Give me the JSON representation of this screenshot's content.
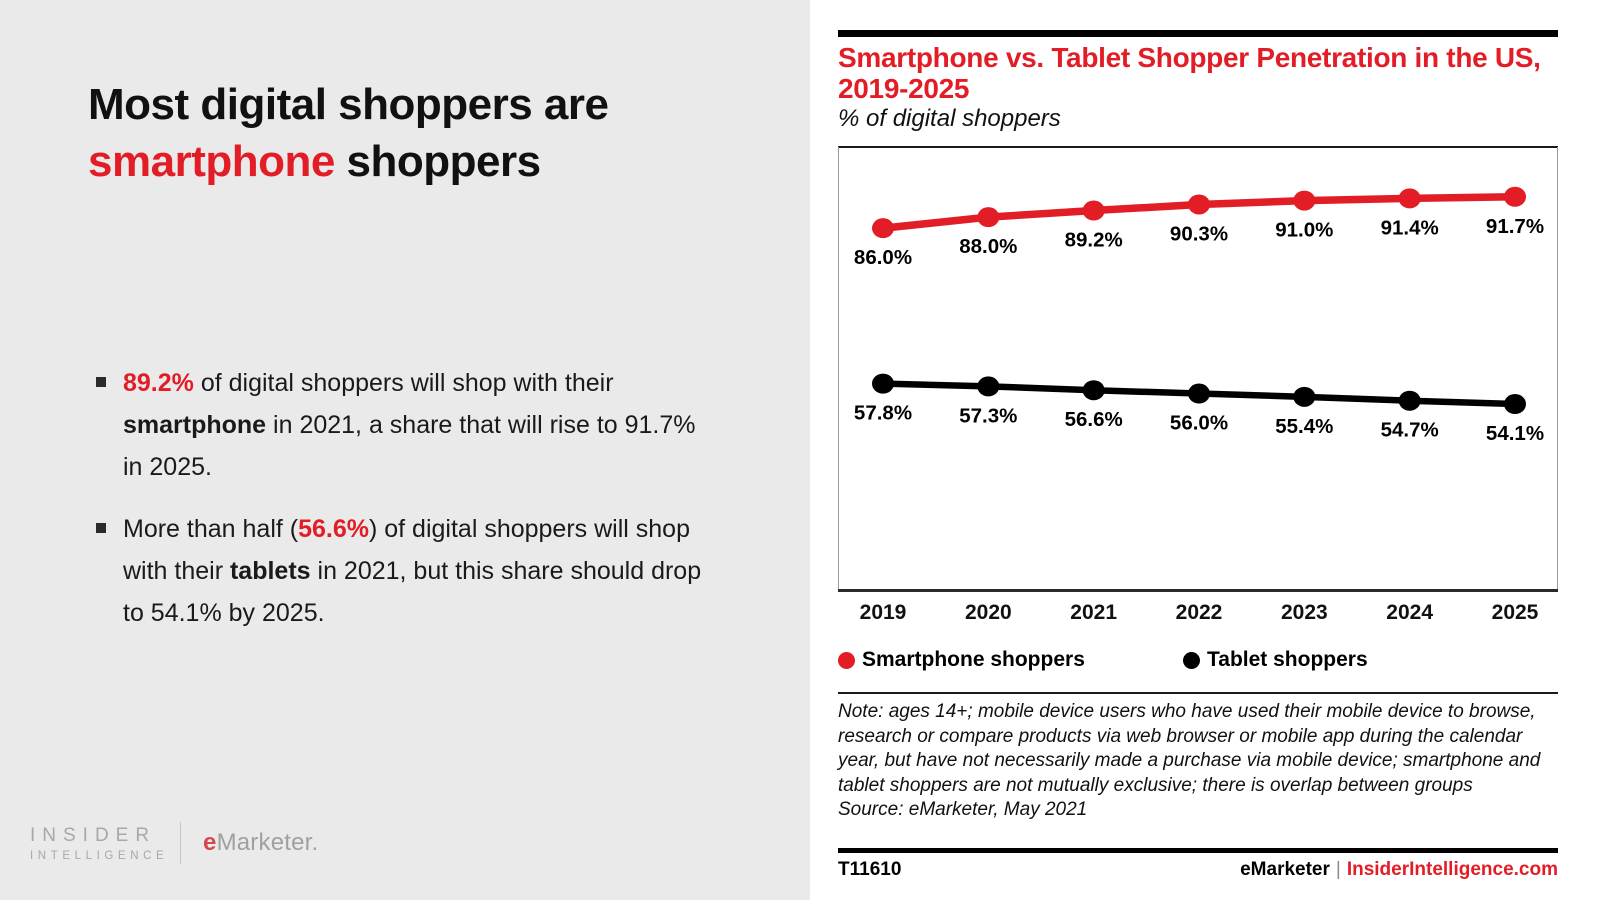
{
  "colors": {
    "red": "#e21d26",
    "black": "#000000",
    "panel_bg": "#eaeaea",
    "logo_gray": "#a9a7a7"
  },
  "left_panel": {
    "title_segments": [
      {
        "t": "Most digital shoppers are ",
        "s": ""
      },
      {
        "t": "smartphone",
        "s": "seg-red"
      },
      {
        "t": " shoppers",
        "s": ""
      }
    ],
    "bullets": [
      {
        "segments": [
          {
            "t": "89.2%",
            "s": "seg-red"
          },
          {
            "t": " of digital shoppers will shop with their ",
            "s": ""
          },
          {
            "t": "smartphone",
            "s": "seg-bold"
          },
          {
            "t": " in 2021, a share that will rise to 91.7% in 2025.",
            "s": ""
          }
        ]
      },
      {
        "segments": [
          {
            "t": "More than half (",
            "s": ""
          },
          {
            "t": "56.6%",
            "s": "seg-red"
          },
          {
            "t": ") of digital shoppers will shop with their ",
            "s": ""
          },
          {
            "t": "tablets",
            "s": "seg-bold"
          },
          {
            "t": " in 2021, but this share should drop to 54.1% by 2025.",
            "s": ""
          }
        ]
      }
    ],
    "logo": {
      "insider": "INSIDER",
      "intelligence": "INTELLIGENCE",
      "brand_e": "e",
      "brand_rest": "Marketer."
    }
  },
  "chart_panel": {
    "title": "Smartphone vs. Tablet Shopper Penetration in the US, 2019-2025",
    "subtitle": "% of digital shoppers",
    "note": "Note: ages 14+; mobile device users who have used their mobile device to browse, research or compare products via web browser or mobile app during the calendar year, but have not necessarily made a purchase via mobile device; smartphone and tablet shoppers are not mutually exclusive; there is overlap between groups",
    "source": "Source: eMarketer, May 2021",
    "footer": {
      "code": "T11610",
      "brand": "eMarketer",
      "pipe": "|",
      "site": "InsiderIntelligence.com"
    }
  },
  "chart_data": {
    "type": "line",
    "title": "Smartphone vs. Tablet Shopper Penetration in the US, 2019-2025",
    "subtitle": "% of digital shoppers",
    "categories": [
      "2019",
      "2020",
      "2021",
      "2022",
      "2023",
      "2024",
      "2025"
    ],
    "series": [
      {
        "name": "Smartphone shoppers",
        "color": "#e21d26",
        "values": [
          86.0,
          88.0,
          89.2,
          90.3,
          91.0,
          91.4,
          91.7
        ],
        "labels": [
          "86.0%",
          "88.0%",
          "89.2%",
          "90.3%",
          "91.0%",
          "91.4%",
          "91.7%"
        ]
      },
      {
        "name": "Tablet shoppers",
        "color": "#000000",
        "values": [
          57.8,
          57.3,
          56.6,
          56.0,
          55.4,
          54.7,
          54.1
        ],
        "labels": [
          "57.8%",
          "57.3%",
          "56.6%",
          "56.0%",
          "55.4%",
          "54.7%",
          "54.1%"
        ]
      }
    ],
    "ylim": [
      20,
      100
    ],
    "xlabel": "",
    "ylabel": "% of digital shoppers",
    "grid": false,
    "legend_position": "bottom",
    "data_labels": true
  }
}
